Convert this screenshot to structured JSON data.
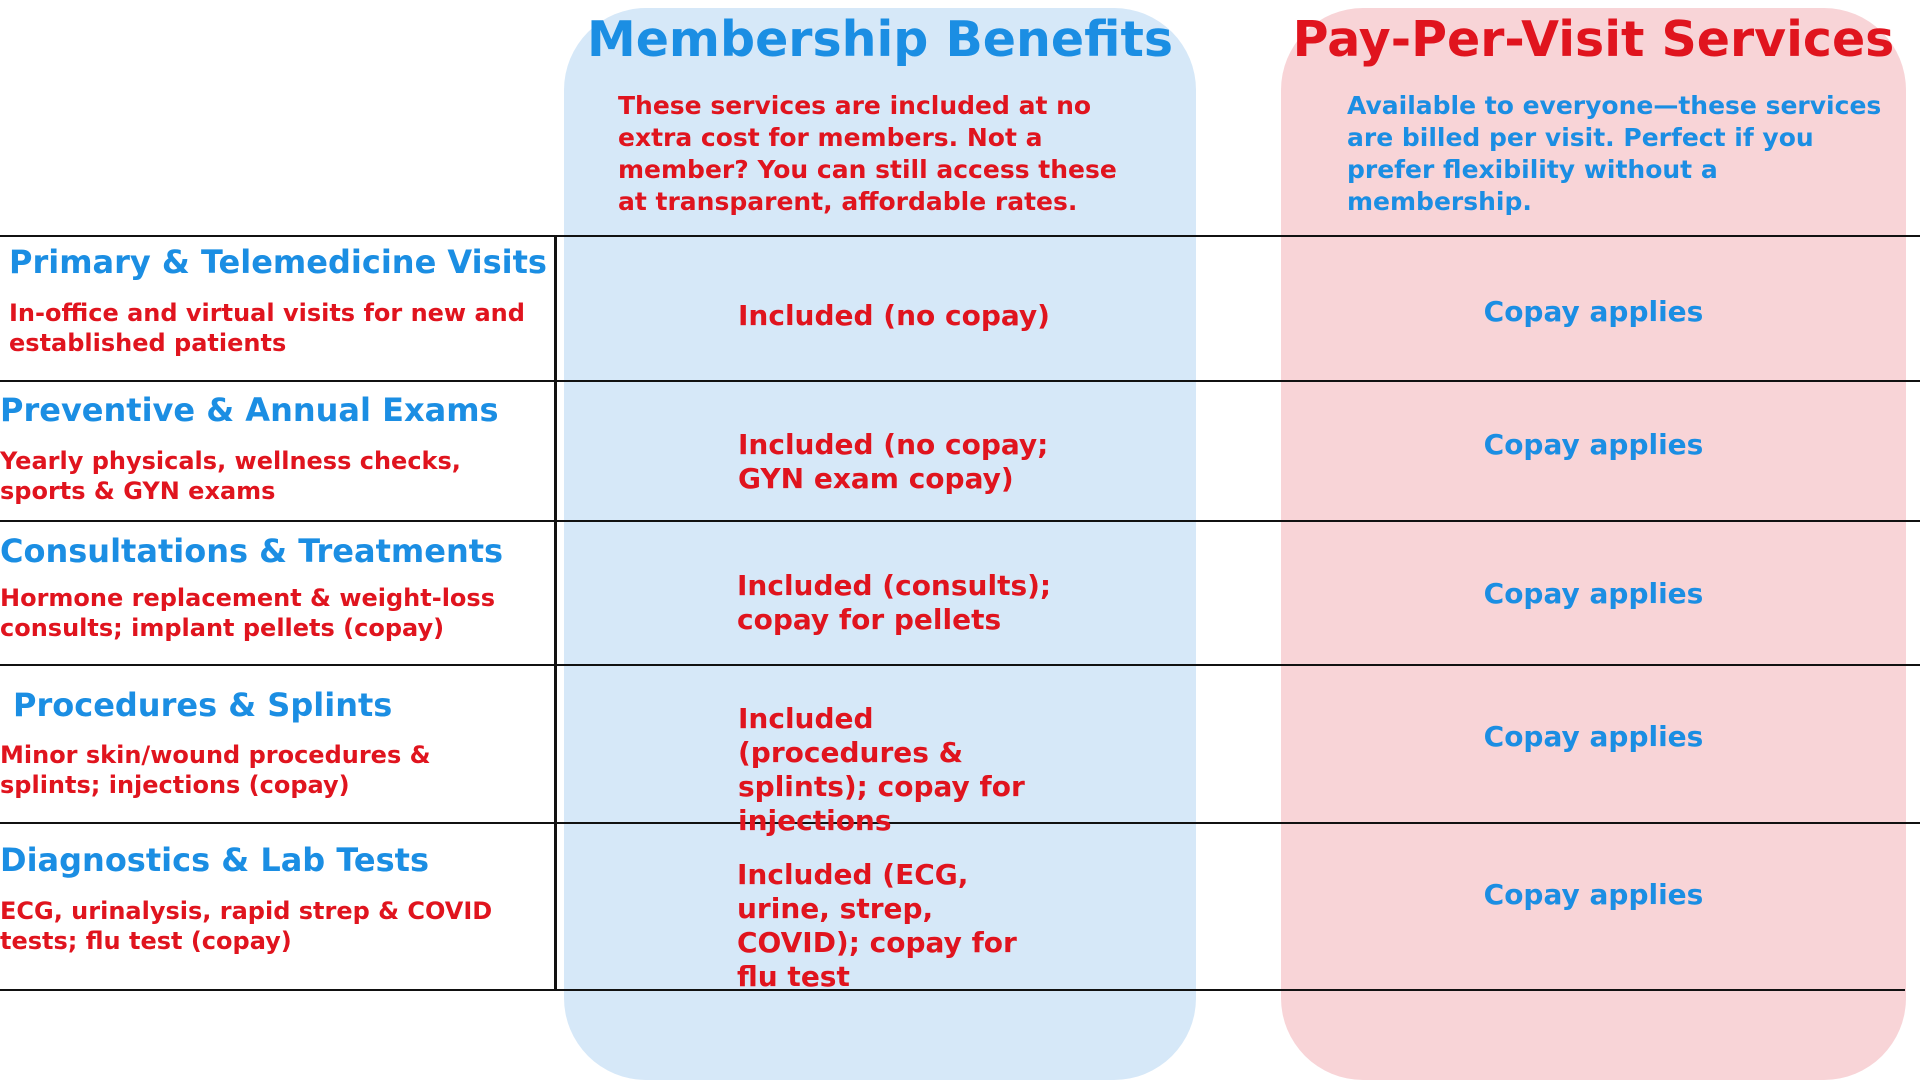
{
  "columns": {
    "membership": {
      "title": "Membership Benefits",
      "description": "These services are included at no extra cost for members. Not a member? You can still access these at transparent, affordable rates.",
      "color": "#d6e8f8"
    },
    "pay_per_visit": {
      "title": "Pay-Per-Visit Services",
      "description": "Available to everyone—these services are billed per visit. Perfect if you prefer flexibility without a membership.",
      "color": "#f8d4d7"
    }
  },
  "colors": {
    "blue_text": "#1b8ee3",
    "red_text": "#e0141e"
  },
  "rows": [
    {
      "title": "Primary & Telemedicine Visits",
      "description": "In-office and virtual visits for new and established patients",
      "membership": "Included (no copay)",
      "pay_per_visit": "Copay applies"
    },
    {
      "title": "Preventive & Annual Exams",
      "description": "Yearly physicals, wellness checks, sports & GYN exams",
      "membership": "Included (no copay; GYN exam copay)",
      "pay_per_visit": "Copay applies"
    },
    {
      "title": "Consultations & Treatments",
      "description": "Hormone replacement & weight-loss consults; implant pellets (copay)",
      "membership": "Included (consults); copay for pellets",
      "pay_per_visit": "Copay applies"
    },
    {
      "title": "Procedures & Splints",
      "description": "Minor skin/wound procedures & splints; injections (copay)",
      "membership": "Included (procedures & splints); copay for injections",
      "pay_per_visit": "Copay applies"
    },
    {
      "title": "Diagnostics & Lab Tests",
      "description": "ECG, urinalysis, rapid strep & COVID tests; flu test (copay)",
      "membership": "Included (ECG, urine, strep, COVID); copay for flu test",
      "pay_per_visit": "Copay applies"
    }
  ]
}
